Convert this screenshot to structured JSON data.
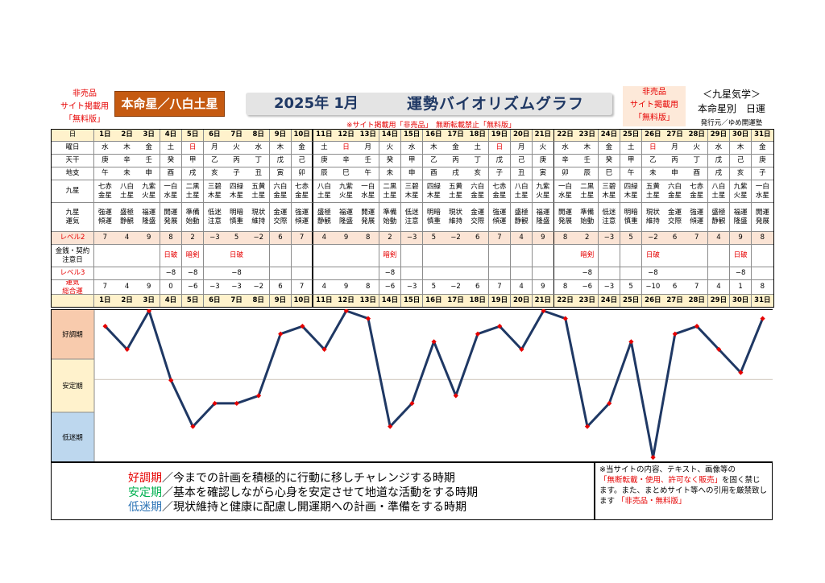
{
  "header": {
    "left_note": [
      "非売品",
      "サイト掲載用",
      "「無料版」"
    ],
    "honmei_label": "本命星／八白土星",
    "title_date": "2025年 1月",
    "title_main": "運勢バイオリズムグラフ",
    "right_note": [
      "非売品",
      "サイト掲載用",
      "「無料版」"
    ],
    "kyusei": "＜九星気学＞",
    "honmeibetsu": "本命星別　日運",
    "publisher": "発行元／ゆめ開運塾",
    "notice": "※サイト掲載用「非売品」　無断転載禁止「無料版」"
  },
  "colors": {
    "line": "#1f3864",
    "point": "#e60000",
    "good_zone": "#f8cbad",
    "stable_zone": "#fff2cc",
    "low_zone": "#bdd7ee",
    "header_row": "#fff2cc",
    "date_row": "#fff2cc",
    "level_row": "#fbe4d5"
  },
  "table": {
    "row_labels": {
      "day": "日",
      "weekday": "曜日",
      "tenkan": "天干",
      "chishi": "地支",
      "kyusei": "九星",
      "unki": "九星\n運気",
      "level2": "レベル2",
      "kinsen": "金銭・契約\n注意日",
      "level3": "レベル3",
      "total": "運気\n総合運"
    },
    "days": [
      "1日",
      "2日",
      "3日",
      "4日",
      "5日",
      "6日",
      "7日",
      "8日",
      "9日",
      "10日",
      "11日",
      "12日",
      "13日",
      "14日",
      "15日",
      "16日",
      "17日",
      "18日",
      "19日",
      "20日",
      "21日",
      "22日",
      "23日",
      "24日",
      "25日",
      "26日",
      "27日",
      "28日",
      "29日",
      "30日",
      "31日"
    ],
    "weekdays": [
      "水",
      "木",
      "金",
      "土",
      "日",
      "月",
      "火",
      "水",
      "木",
      "金",
      "土",
      "日",
      "月",
      "火",
      "水",
      "木",
      "金",
      "土",
      "日",
      "月",
      "火",
      "水",
      "木",
      "金",
      "土",
      "日",
      "月",
      "火",
      "水",
      "木",
      "金"
    ],
    "tenkan": [
      "庚",
      "辛",
      "壬",
      "癸",
      "甲",
      "乙",
      "丙",
      "丁",
      "戊",
      "己",
      "庚",
      "辛",
      "壬",
      "癸",
      "甲",
      "乙",
      "丙",
      "丁",
      "戊",
      "己",
      "庚",
      "辛",
      "壬",
      "癸",
      "甲",
      "乙",
      "丙",
      "丁",
      "戊",
      "己",
      "庚"
    ],
    "chishi": [
      "午",
      "未",
      "申",
      "酉",
      "戌",
      "亥",
      "子",
      "丑",
      "寅",
      "卯",
      "辰",
      "巳",
      "午",
      "未",
      "申",
      "酉",
      "戌",
      "亥",
      "子",
      "丑",
      "寅",
      "卯",
      "辰",
      "巳",
      "午",
      "未",
      "申",
      "酉",
      "戌",
      "亥",
      "子"
    ],
    "kyusei": [
      "七赤\n金星",
      "八白\n土星",
      "九紫\n火星",
      "一白\n水星",
      "二黒\n土星",
      "三碧\n木星",
      "四緑\n木星",
      "五黄\n土星",
      "六白\n金星",
      "七赤\n金星",
      "八白\n土星",
      "九紫\n火星",
      "一白\n水星",
      "二黒\n土星",
      "三碧\n木星",
      "四緑\n木星",
      "五黄\n土星",
      "六白\n金星",
      "七赤\n金星",
      "八白\n土星",
      "九紫\n火星",
      "一白\n水星",
      "二黒\n土星",
      "三碧\n木星",
      "四緑\n木星",
      "五黄\n土星",
      "六白\n金星",
      "七赤\n金星",
      "八白\n土星",
      "九紫\n火星",
      "一白\n水星"
    ],
    "unki": [
      "強運\n傾運",
      "盛極\n静観",
      "福運\n隆盛",
      "開運\n発展",
      "準備\n始動",
      "低迷\n注意",
      "明暗\n慎重",
      "現状\n維持",
      "金運\n交際",
      "強運\n傾運",
      "盛極\n静観",
      "福運\n隆盛",
      "開運\n発展",
      "準備\n始動",
      "低迷\n注意",
      "明暗\n慎重",
      "現状\n維持",
      "金運\n交際",
      "強運\n傾運",
      "盛極\n静観",
      "福運\n隆盛",
      "開運\n発展",
      "準備\n始動",
      "低迷\n注意",
      "明暗\n慎重",
      "現状\n維持",
      "金運\n交際",
      "強運\n傾運",
      "盛極\n静観",
      "福運\n隆盛",
      "開運\n発展"
    ],
    "level2": [
      "7",
      "4",
      "9",
      "8",
      "2",
      "−3",
      "5",
      "−2",
      "6",
      "7",
      "4",
      "9",
      "8",
      "2",
      "−3",
      "5",
      "−2",
      "6",
      "7",
      "4",
      "9",
      "8",
      "2",
      "−3",
      "5",
      "−2",
      "6",
      "7",
      "4",
      "9",
      "8"
    ],
    "kinsen": [
      "",
      "",
      "",
      "日破",
      "暗剣",
      "",
      "日破",
      "",
      "",
      "",
      "",
      "",
      "",
      "暗剣",
      "",
      "",
      "",
      "",
      "",
      "",
      "",
      "",
      "暗剣",
      "",
      "",
      "日破",
      "",
      "",
      "",
      "日破",
      ""
    ],
    "level3": [
      "",
      "",
      "",
      "−8",
      "−8",
      "",
      "−8",
      "",
      "",
      "",
      "",
      "",
      "",
      "−8",
      "",
      "",
      "",
      "",
      "",
      "",
      "",
      "",
      "−8",
      "",
      "",
      "−8",
      "",
      "",
      "",
      "−8",
      ""
    ],
    "total": [
      "7",
      "4",
      "9",
      "0",
      "−6",
      "−3",
      "−3",
      "−2",
      "6",
      "7",
      "4",
      "9",
      "8",
      "−6",
      "−3",
      "5",
      "−2",
      "6",
      "7",
      "4",
      "9",
      "8",
      "−6",
      "−3",
      "5",
      "−10",
      "6",
      "7",
      "4",
      "1",
      "8"
    ]
  },
  "chart_data": {
    "type": "line",
    "x": [
      1,
      2,
      3,
      4,
      5,
      6,
      7,
      8,
      9,
      10,
      11,
      12,
      13,
      14,
      15,
      16,
      17,
      18,
      19,
      20,
      21,
      22,
      23,
      24,
      25,
      26,
      27,
      28,
      29,
      30,
      31
    ],
    "categories": [
      "1日",
      "2日",
      "3日",
      "4日",
      "5日",
      "6日",
      "7日",
      "8日",
      "9日",
      "10日",
      "11日",
      "12日",
      "13日",
      "14日",
      "15日",
      "16日",
      "17日",
      "18日",
      "19日",
      "20日",
      "21日",
      "22日",
      "23日",
      "24日",
      "25日",
      "26日",
      "27日",
      "28日",
      "29日",
      "30日",
      "31日"
    ],
    "series": [
      {
        "values": [
          7,
          4,
          9,
          0,
          -6,
          -3,
          -3,
          -2,
          6,
          7,
          4,
          9,
          8,
          -6,
          -3,
          5,
          -2,
          6,
          7,
          4,
          9,
          8,
          -6,
          -3,
          5,
          -10,
          6,
          7,
          4,
          1,
          8
        ]
      }
    ],
    "ylim": [
      -10,
      9
    ],
    "zones": [
      "好調期",
      "安定期",
      "低迷期"
    ],
    "grid": false
  },
  "footer": {
    "good_head": "好調期",
    "good_text": "／今までの計画を積極的に行動に移しチャレンジする時期",
    "stable_head": "安定期",
    "stable_text": "／基本を確認しながら心身を安定させて地道な活動をする時期",
    "low_head": "低迷期",
    "low_text": "／現状維持と健康に配慮し開運期への計画・準備をする時期",
    "notice_1": "※当サイトの内容、テキスト、画像等の",
    "notice_2": "「無断転載・使用、許可なく販売」",
    "notice_3": "を固く禁じます。また、まとめサイト等への引用を厳禁致します",
    "notice_4": "「非売品・無料版」"
  }
}
